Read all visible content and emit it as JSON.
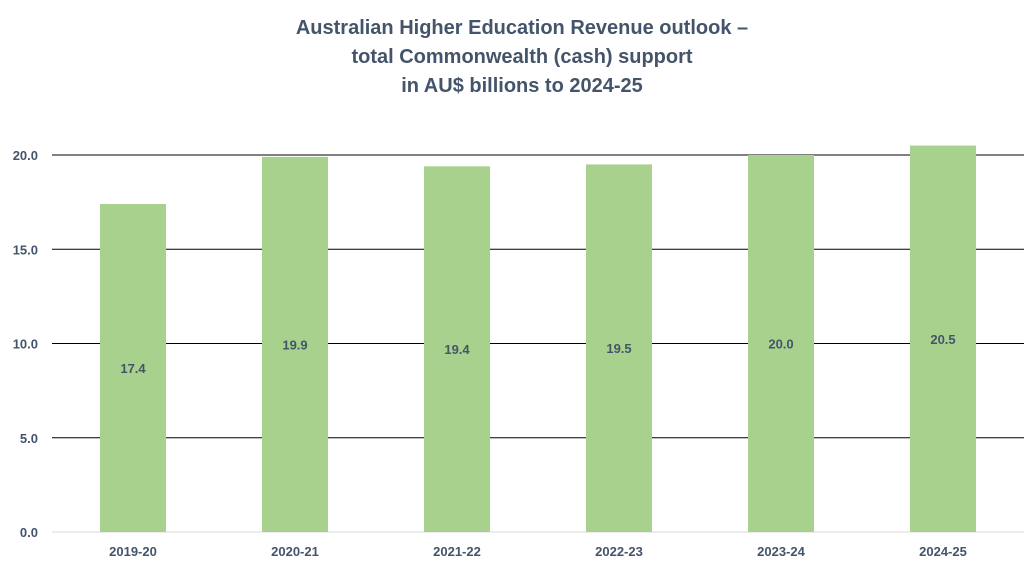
{
  "chart_data": {
    "type": "bar",
    "title_lines": [
      "Australian Higher Education Revenue outlook –",
      "total Commonwealth (cash) support",
      "in AU$ billions to 2024-25"
    ],
    "categories": [
      "2019-20",
      "2020-21",
      "2021-22",
      "2022-23",
      "2023-24",
      "2024-25"
    ],
    "values": [
      17.4,
      19.9,
      19.4,
      19.5,
      20.0,
      20.5
    ],
    "data_labels": [
      "17.4",
      "19.9",
      "19.4",
      "19.5",
      "20.0",
      "20.5"
    ],
    "y_ticks": [
      "0.0",
      "5.0",
      "10.0",
      "15.0",
      "20.0"
    ],
    "ylim": [
      0,
      20
    ],
    "grid": true,
    "bar_color": "#a9d18e",
    "text_color": "#44546a",
    "legend": "none"
  }
}
